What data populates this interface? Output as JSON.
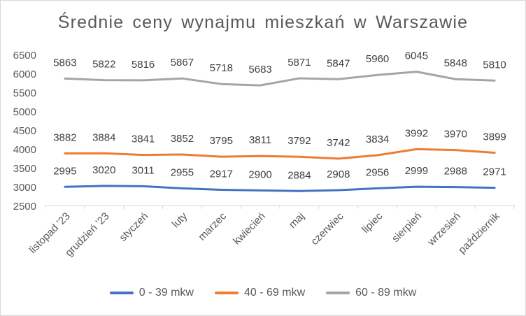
{
  "chart_data": {
    "type": "line",
    "title": "Średnie ceny wynajmu mieszkań w Warszawie",
    "categories": [
      "listopad '23",
      "grudzień '23",
      "styczeń",
      "luty",
      "marzec",
      "kwiecień",
      "maj",
      "czerwiec",
      "lipiec",
      "sierpień",
      "wrzesień",
      "październik"
    ],
    "ylim": [
      2500,
      6500
    ],
    "yticks": [
      2500,
      3000,
      3500,
      4000,
      4500,
      5000,
      5500,
      6000,
      6500
    ],
    "grid": false,
    "legend_position": "bottom",
    "series": [
      {
        "name": "0 - 39 mkw",
        "color": "#4472c4",
        "values": [
          2995,
          3020,
          3011,
          2955,
          2917,
          2900,
          2884,
          2908,
          2956,
          2999,
          2988,
          2971
        ]
      },
      {
        "name": "40 - 69 mkw",
        "color": "#ed7d31",
        "values": [
          3882,
          3884,
          3841,
          3852,
          3795,
          3811,
          3792,
          3742,
          3834,
          3992,
          3970,
          3899
        ]
      },
      {
        "name": "60 - 89 mkw",
        "color": "#a5a5a5",
        "values": [
          5863,
          5822,
          5816,
          5867,
          5718,
          5683,
          5871,
          5847,
          5960,
          6045,
          5848,
          5810
        ]
      }
    ]
  }
}
